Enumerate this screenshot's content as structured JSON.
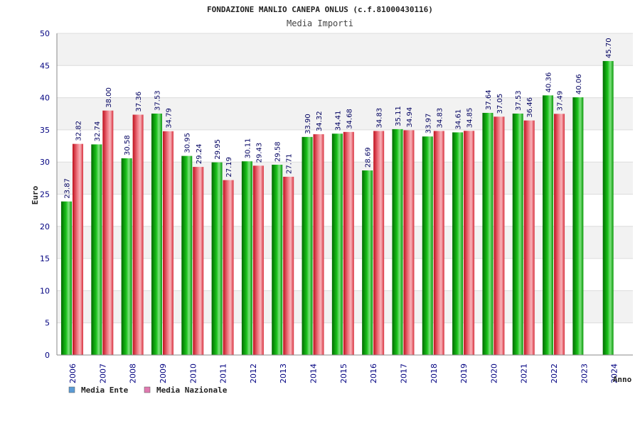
{
  "chart_data": {
    "type": "bar",
    "title": "FONDAZIONE MANLIO CANEPA ONLUS (c.f.81000430116)",
    "subtitle": "Media Importi",
    "ylabel": "Euro",
    "xlabel": "Anno",
    "ylim": [
      0,
      50
    ],
    "yticks": [
      "0",
      "5",
      "10",
      "15",
      "20",
      "25",
      "30",
      "35",
      "40",
      "45",
      "50"
    ],
    "categories": [
      "2006",
      "2007",
      "2008",
      "2009",
      "2010",
      "2011",
      "2012",
      "2013",
      "2014",
      "2015",
      "2016",
      "2017",
      "2018",
      "2019",
      "2020",
      "2021",
      "2022",
      "2023",
      "2024"
    ],
    "series": [
      {
        "name": "Media Ente",
        "color": "#10b010",
        "legend_color": "#5b9bd5",
        "values": [
          23.87,
          32.74,
          30.58,
          37.53,
          30.95,
          29.95,
          30.11,
          29.58,
          33.9,
          34.41,
          28.69,
          35.11,
          33.97,
          34.61,
          37.64,
          37.53,
          40.36,
          40.06,
          45.7
        ],
        "labels": [
          "23.87",
          "32.74",
          "30.58",
          "37.53",
          "30.95",
          "29.95",
          "30.11",
          "29.58",
          "33.90",
          "34.41",
          "28.69",
          "35.11",
          "33.97",
          "34.61",
          "37.64",
          "37.53",
          "40.36",
          "40.06",
          "45.70"
        ]
      },
      {
        "name": "Media Nazionale",
        "color": "#e03040",
        "legend_color": "#e07ab0",
        "values": [
          32.82,
          38.0,
          37.36,
          34.79,
          29.24,
          27.19,
          29.43,
          27.71,
          34.32,
          34.68,
          34.83,
          34.94,
          34.83,
          34.85,
          37.05,
          36.46,
          37.49,
          null,
          null
        ],
        "labels": [
          "32.82",
          "38.00",
          "37.36",
          "34.79",
          "29.24",
          "27.19",
          "29.43",
          "27.71",
          "34.32",
          "34.68",
          "34.83",
          "34.94",
          "34.83",
          "34.85",
          "37.05",
          "36.46",
          "37.49",
          "",
          ""
        ]
      }
    ],
    "grid": true,
    "legend_position": "bottom-left"
  }
}
